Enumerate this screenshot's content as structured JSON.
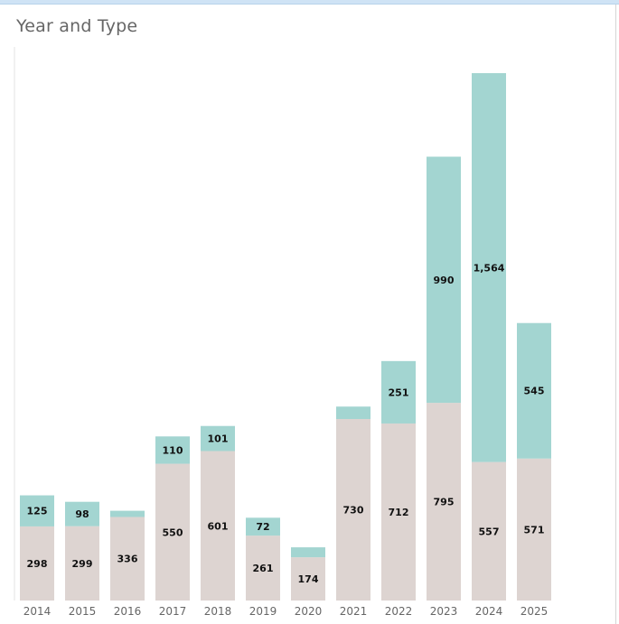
{
  "chart_data": {
    "type": "bar",
    "stacked": true,
    "title": "Year and Type",
    "xlabel": "",
    "ylabel": "",
    "ylim": [
      0,
      2300
    ],
    "grid": false,
    "legend": "none",
    "categories": [
      "2014",
      "2015",
      "2016",
      "2017",
      "2018",
      "2019",
      "2020",
      "2021",
      "2022",
      "2023",
      "2024",
      "2025"
    ],
    "series": [
      {
        "color": "#ddd4d1",
        "values": [
          298,
          299,
          336,
          550,
          601,
          261,
          174,
          730,
          712,
          795,
          557,
          571
        ],
        "labels": [
          "298",
          "299",
          "336",
          "550",
          "601",
          "261",
          "174",
          "730",
          "712",
          "795",
          "557",
          "571"
        ]
      },
      {
        "color": "#a3d5d1",
        "values": [
          125,
          98,
          25,
          110,
          101,
          72,
          40,
          50,
          251,
          990,
          1564,
          545
        ],
        "labels": [
          "125",
          "98",
          "",
          "110",
          "101",
          "72",
          "",
          "",
          "251",
          "990",
          "1,564",
          "545"
        ]
      }
    ]
  }
}
